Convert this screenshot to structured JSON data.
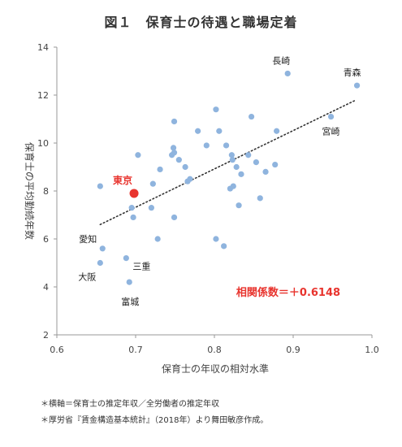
{
  "chart_data": {
    "type": "scatter",
    "title": "図１　保育士の待遇と職場定着",
    "xlabel": "保育士の年収の相対水準",
    "ylabel": "保育士の平均勤続年数",
    "xlim": [
      0.6,
      1.0
    ],
    "ylim": [
      2,
      14
    ],
    "x_ticks": [
      "0.6",
      "0.7",
      "0.8",
      "0.9",
      "1.0"
    ],
    "y_ticks": [
      "2",
      "4",
      "6",
      "8",
      "10",
      "12",
      "14"
    ],
    "grid": false,
    "trendline": "linear-dotted",
    "correlation_label": "相関係数＝＋0.6148",
    "highlight": {
      "name": "東京",
      "x": 0.698,
      "y": 7.9
    },
    "point_color": "#8fb4de",
    "highlight_color": "#e8342e",
    "points": [
      {
        "x": 0.655,
        "y": 8.2
      },
      {
        "x": 0.658,
        "y": 5.6
      },
      {
        "x": 0.655,
        "y": 5.0
      },
      {
        "x": 0.688,
        "y": 5.2
      },
      {
        "x": 0.692,
        "y": 4.2
      },
      {
        "x": 0.695,
        "y": 7.3
      },
      {
        "x": 0.697,
        "y": 6.9
      },
      {
        "x": 0.703,
        "y": 9.5
      },
      {
        "x": 0.72,
        "y": 7.3
      },
      {
        "x": 0.722,
        "y": 8.3
      },
      {
        "x": 0.728,
        "y": 6.0
      },
      {
        "x": 0.731,
        "y": 8.9
      },
      {
        "x": 0.746,
        "y": 9.5
      },
      {
        "x": 0.748,
        "y": 9.8
      },
      {
        "x": 0.749,
        "y": 9.6
      },
      {
        "x": 0.749,
        "y": 10.9
      },
      {
        "x": 0.749,
        "y": 6.9
      },
      {
        "x": 0.755,
        "y": 9.3
      },
      {
        "x": 0.763,
        "y": 9.0
      },
      {
        "x": 0.766,
        "y": 8.4
      },
      {
        "x": 0.769,
        "y": 8.5
      },
      {
        "x": 0.779,
        "y": 10.5
      },
      {
        "x": 0.79,
        "y": 9.9
      },
      {
        "x": 0.802,
        "y": 11.4
      },
      {
        "x": 0.802,
        "y": 6.0
      },
      {
        "x": 0.806,
        "y": 10.5
      },
      {
        "x": 0.812,
        "y": 5.7
      },
      {
        "x": 0.815,
        "y": 9.9
      },
      {
        "x": 0.82,
        "y": 8.1
      },
      {
        "x": 0.822,
        "y": 9.5
      },
      {
        "x": 0.823,
        "y": 9.3
      },
      {
        "x": 0.824,
        "y": 8.2
      },
      {
        "x": 0.828,
        "y": 9.0
      },
      {
        "x": 0.831,
        "y": 7.4
      },
      {
        "x": 0.834,
        "y": 8.7
      },
      {
        "x": 0.843,
        "y": 9.5
      },
      {
        "x": 0.847,
        "y": 11.1
      },
      {
        "x": 0.853,
        "y": 9.2
      },
      {
        "x": 0.858,
        "y": 7.7
      },
      {
        "x": 0.865,
        "y": 8.8
      },
      {
        "x": 0.877,
        "y": 9.1
      },
      {
        "x": 0.879,
        "y": 10.5
      },
      {
        "x": 0.893,
        "y": 12.9
      },
      {
        "x": 0.948,
        "y": 11.1
      },
      {
        "x": 0.981,
        "y": 12.4
      }
    ],
    "labels": [
      {
        "text": "長崎",
        "x": 0.893,
        "y": 12.9
      },
      {
        "text": "青森",
        "x": 0.981,
        "y": 12.4
      },
      {
        "text": "宮崎",
        "x": 0.948,
        "y": 11.1
      },
      {
        "text": "愛知",
        "x": 0.658,
        "y": 5.6
      },
      {
        "text": "大阪",
        "x": 0.655,
        "y": 5.0
      },
      {
        "text": "三重",
        "x": 0.688,
        "y": 5.2
      },
      {
        "text": "富城",
        "x": 0.692,
        "y": 4.2
      }
    ],
    "trend": {
      "x1": 0.655,
      "y1": 6.6,
      "x2": 0.98,
      "y2": 11.8
    }
  },
  "notes": [
    "＊横軸＝保育士の推定年収／全労働者の推定年収",
    "＊厚労省『賃金構造基本統計』（2018年）より舞田敏彦作成。"
  ]
}
